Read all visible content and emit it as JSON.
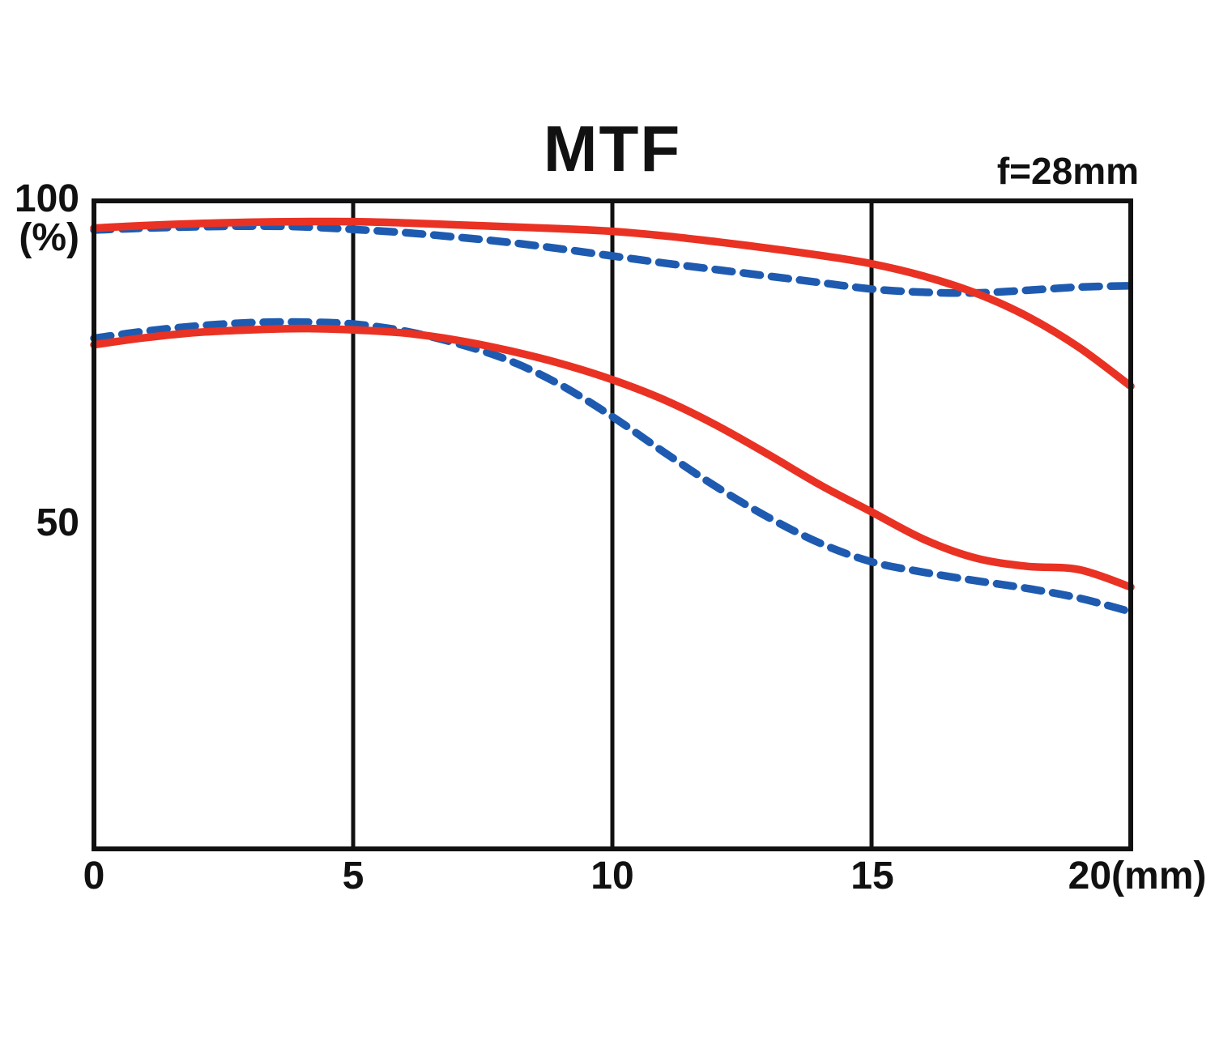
{
  "chart_data": {
    "type": "line",
    "title": "MTF",
    "annotation": "f=28mm",
    "x_unit": "mm",
    "y_unit": "%",
    "xlim": [
      0,
      20
    ],
    "ylim": [
      0,
      100
    ],
    "xticks": [
      0,
      5,
      10,
      15,
      20
    ],
    "xtick_labels": [
      "0",
      "5",
      "10",
      "15",
      "20(mm)"
    ],
    "ytick_labels": {
      "y100": "100",
      "unit": "(%)",
      "y50": "50"
    },
    "grid": "vertical lines at x=5,10,15 only",
    "legend": "none",
    "colors": {
      "solid_red": "#e93223",
      "dashed_blue": "#1e5bb0",
      "frame": "#111111"
    },
    "x": [
      0,
      1,
      2,
      3,
      4,
      5,
      6,
      7,
      8,
      9,
      10,
      11,
      12,
      13,
      14,
      15,
      16,
      17,
      18,
      19,
      20
    ],
    "series": [
      {
        "name": "upper-solid-red",
        "color": "#e93223",
        "style": "solid",
        "values": [
          95.8,
          96.2,
          96.5,
          96.7,
          96.8,
          96.8,
          96.6,
          96.3,
          96.0,
          95.7,
          95.3,
          94.6,
          93.7,
          92.7,
          91.6,
          90.3,
          88.4,
          85.8,
          82.2,
          77.4,
          71.4
        ]
      },
      {
        "name": "upper-dashed-blue",
        "color": "#1e5bb0",
        "style": "dashed",
        "values": [
          95.5,
          95.8,
          96.0,
          96.1,
          96.0,
          95.6,
          95.1,
          94.4,
          93.6,
          92.6,
          91.5,
          90.4,
          89.4,
          88.4,
          87.4,
          86.4,
          85.9,
          85.8,
          86.2,
          86.7,
          86.9
        ]
      },
      {
        "name": "lower-solid-red",
        "color": "#e93223",
        "style": "solid",
        "values": [
          77.8,
          78.9,
          79.7,
          80.1,
          80.3,
          80.1,
          79.6,
          78.5,
          76.9,
          74.9,
          72.4,
          69.3,
          65.4,
          60.9,
          56.2,
          52.0,
          47.8,
          44.9,
          43.6,
          43.1,
          40.4
        ]
      },
      {
        "name": "lower-dashed-blue",
        "color": "#1e5bb0",
        "style": "dashed",
        "values": [
          78.8,
          79.9,
          80.7,
          81.2,
          81.3,
          81.0,
          79.9,
          78.0,
          75.4,
          71.6,
          66.7,
          61.2,
          55.9,
          51.2,
          47.2,
          44.3,
          42.7,
          41.4,
          40.2,
          38.7,
          36.6
        ]
      }
    ]
  }
}
